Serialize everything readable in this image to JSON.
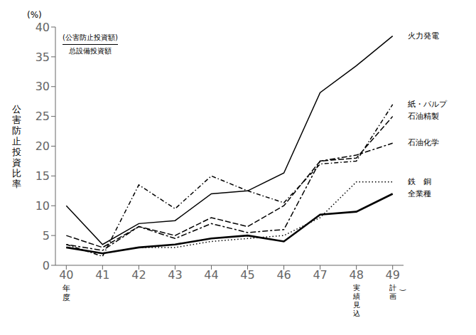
{
  "chart_data": {
    "type": "line",
    "color": "#000000",
    "grid": false,
    "y_label": "公害防止投資比率",
    "annotations": [
      "(%)",
      "年度",
      "実績見込",
      "計画",
      "）",
      "(公害防止投資額)",
      "总設備投資額"
    ],
    "x": [
      40,
      41,
      42,
      43,
      44,
      45,
      46,
      47,
      48,
      49
    ],
    "xlim": [
      39.7,
      49.3
    ],
    "xticks": [
      40,
      41,
      42,
      43,
      44,
      45,
      46,
      47,
      48,
      49
    ],
    "ylim": [
      0,
      40
    ],
    "yticks": [
      0,
      5,
      10,
      15,
      20,
      25,
      30,
      35,
      40
    ],
    "series": [
      {
        "name": "火力発電",
        "line_style": "solid",
        "values": [
          10.0,
          3.5,
          7.0,
          7.5,
          12.0,
          12.5,
          15.5,
          29.0,
          33.5,
          38.5
        ]
      },
      {
        "name": "紙・パルプ",
        "line_style": "dashdot",
        "values": [
          3.5,
          1.5,
          13.5,
          9.5,
          15.0,
          12.5,
          10.5,
          17.0,
          17.5,
          27.0
        ]
      },
      {
        "name": "石油精製",
        "line_style": "dashed",
        "values": [
          5.0,
          3.0,
          6.5,
          5.0,
          8.0,
          6.5,
          10.0,
          17.5,
          18.0,
          25.0
        ]
      },
      {
        "name": "石油化学",
        "line_style": "dotdash",
        "values": [
          3.5,
          2.5,
          6.5,
          4.5,
          7.0,
          5.5,
          6.0,
          17.5,
          18.5,
          20.5
        ]
      },
      {
        "name": "鉄　銅",
        "line_style": "dotted",
        "values": [
          3.0,
          2.0,
          3.0,
          3.0,
          4.0,
          4.5,
          5.0,
          8.0,
          14.0,
          14.0
        ]
      },
      {
        "name": "全業種",
        "line_style": "thick",
        "values": [
          3.0,
          2.0,
          3.0,
          3.5,
          4.5,
          5.0,
          4.0,
          8.5,
          9.0,
          12.0
        ]
      }
    ]
  }
}
